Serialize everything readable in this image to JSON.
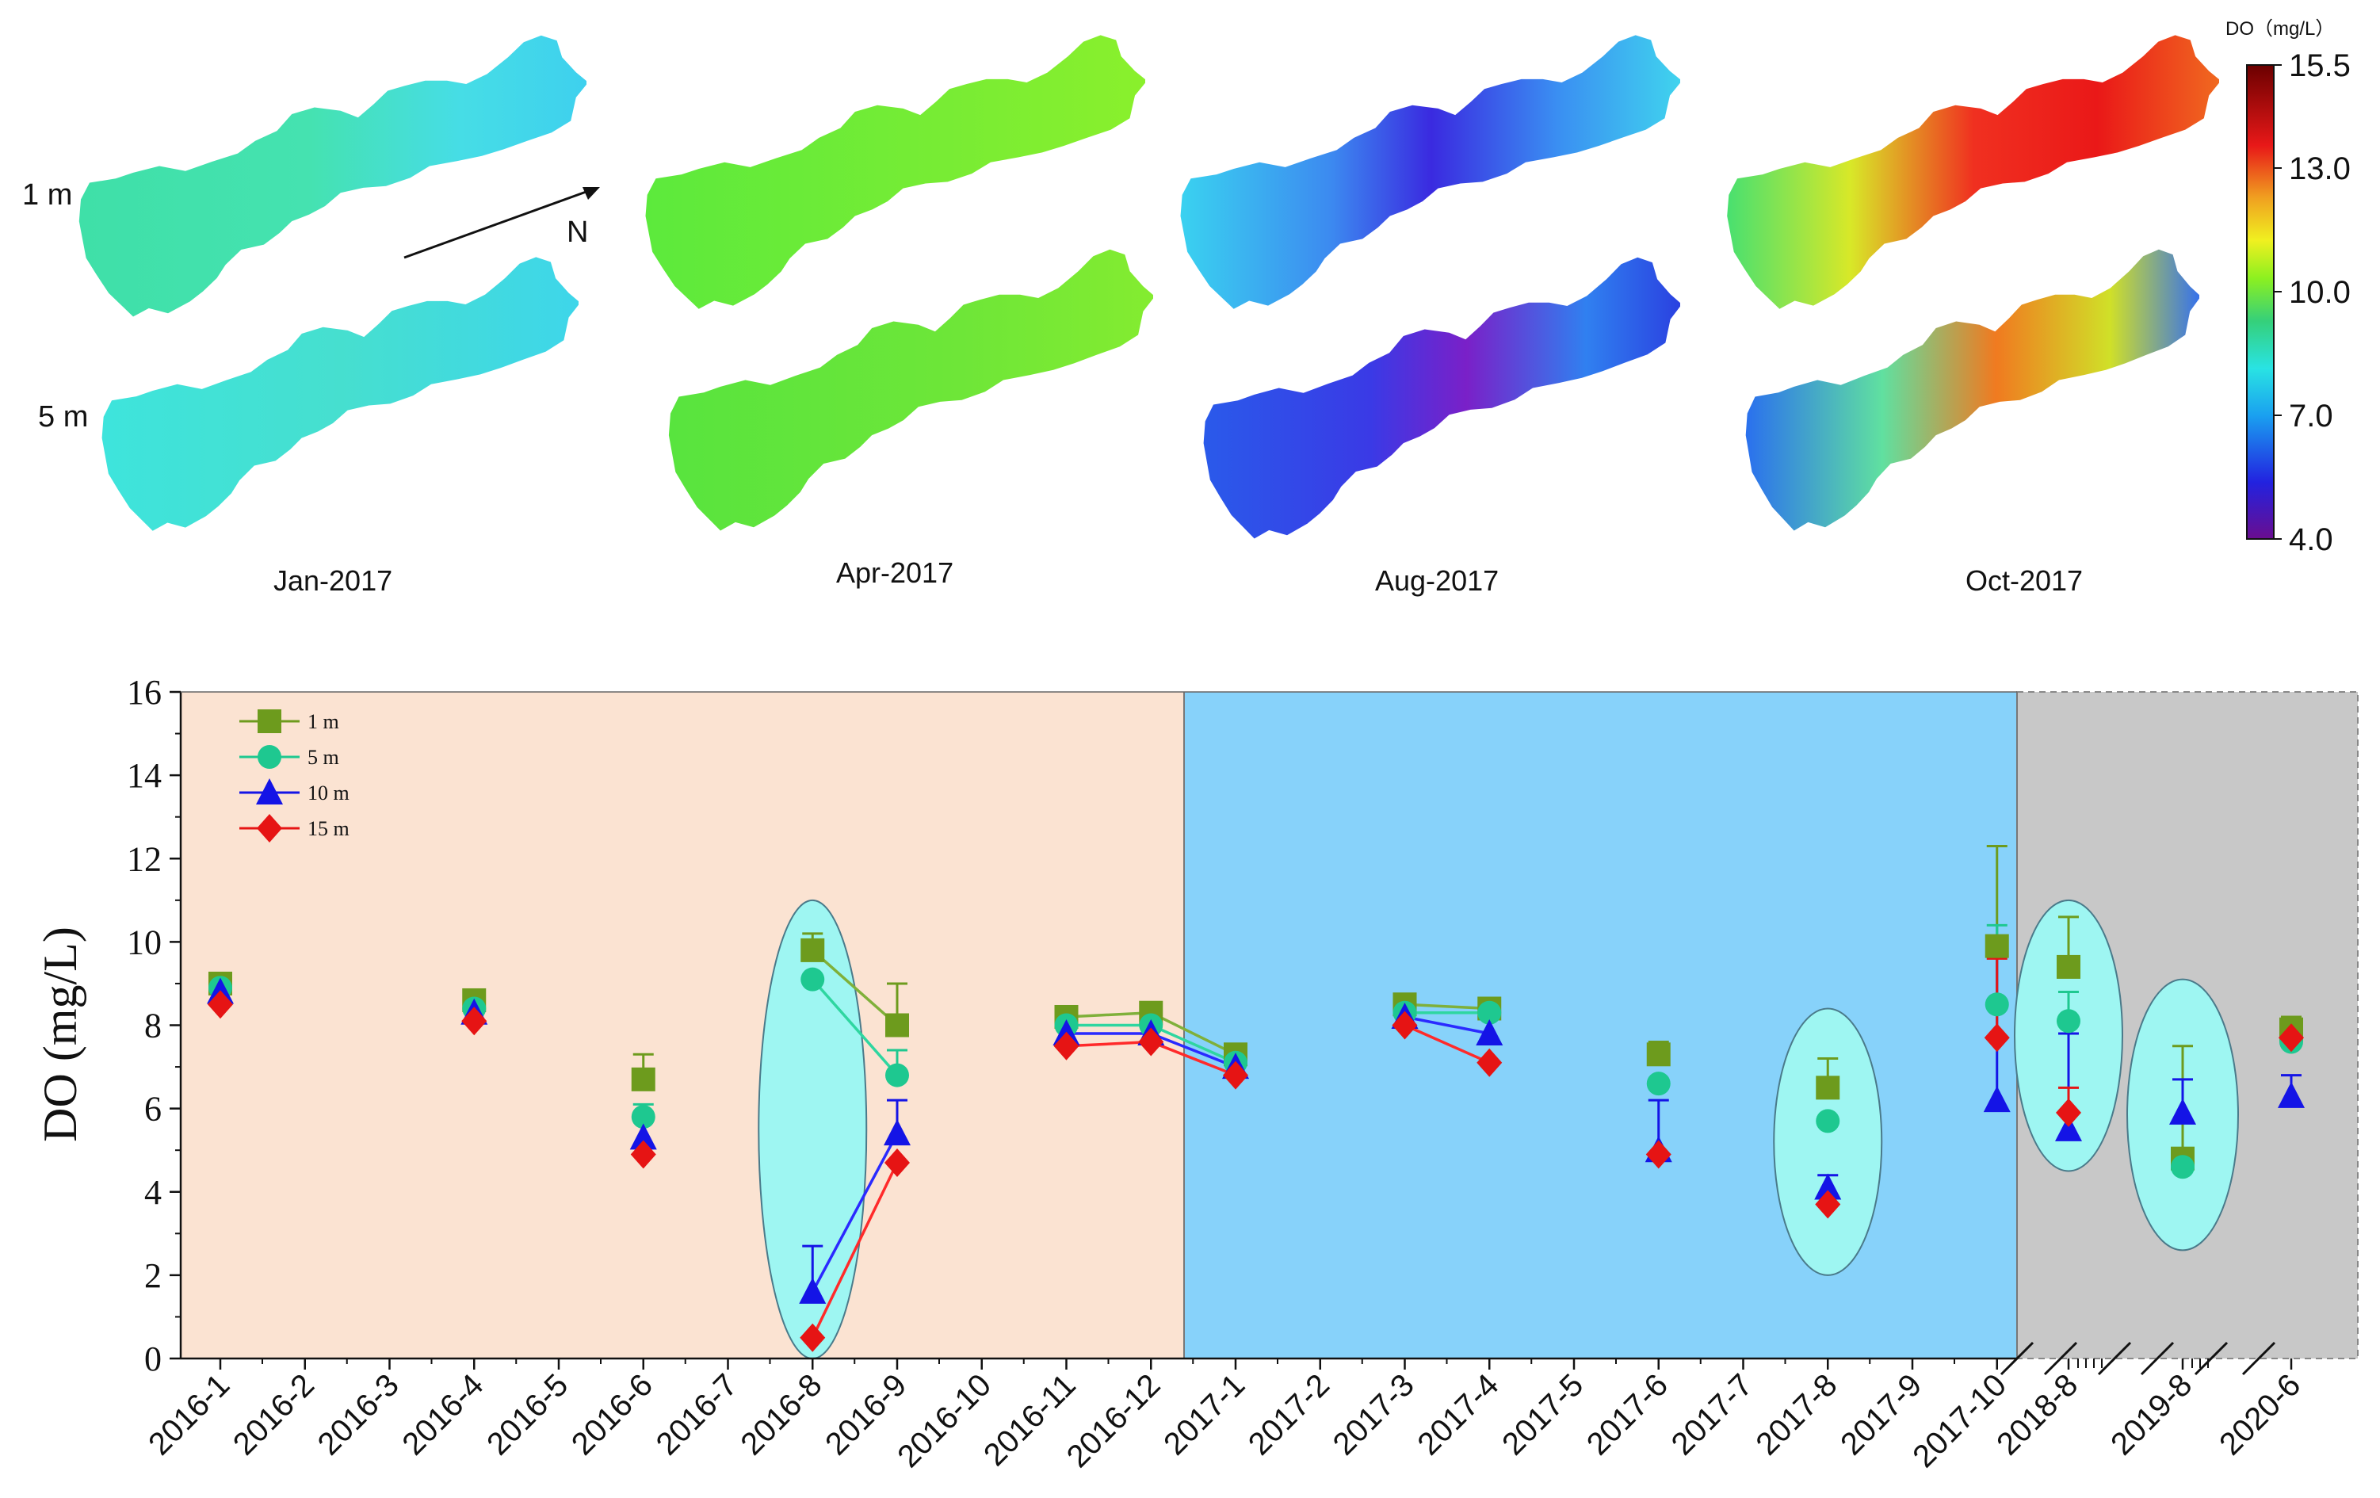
{
  "maps": {
    "depths": [
      "1 m",
      "5 m"
    ],
    "months": [
      "Jan-2017",
      "Apr-2017",
      "Aug-2017",
      "Oct-2017"
    ],
    "north_label": "N",
    "colorbar": {
      "title": "DO（mg/L）",
      "ticks": [
        "15.5",
        "13.0",
        "10.0",
        "7.0",
        "4.0"
      ],
      "min": 4.0,
      "max": 15.5,
      "colors": [
        "#6a0d8f",
        "#2020e0",
        "#1aa0f0",
        "#29e3e3",
        "#35d07a",
        "#8cf020",
        "#f0f020",
        "#f0a020",
        "#e81818",
        "#6b0000"
      ]
    }
  },
  "chart_data": {
    "type": "scatter",
    "title": "",
    "xlabel": "",
    "ylabel": "DO (mg/L)",
    "ylim": [
      0,
      16
    ],
    "yticks": [
      "0",
      "2",
      "4",
      "6",
      "8",
      "10",
      "12",
      "14",
      "16"
    ],
    "categories": [
      "2016-1",
      "2016-2",
      "2016-3",
      "2016-4",
      "2016-5",
      "2016-6",
      "2016-7",
      "2016-8",
      "2016-9",
      "2016-10",
      "2016-11",
      "2016-12",
      "2017-1",
      "2017-2",
      "2017-3",
      "2017-4",
      "2017-5",
      "2017-6",
      "2017-7",
      "2017-8",
      "2017-9",
      "2017-10",
      "2018-8",
      "2019-8",
      "2020-6"
    ],
    "periods": [
      {
        "from": "2016-1",
        "to": "2016-12",
        "color": "#fbe3d2"
      },
      {
        "from": "2017-1",
        "to": "2017-10",
        "color": "#87d2fa"
      },
      {
        "from": "2018-8",
        "to": "2020-6",
        "color": "#c8c8c8"
      }
    ],
    "highlighted_months": [
      "2016-8",
      "2017-8",
      "2018-8",
      "2019-8"
    ],
    "connected_segments": [
      [
        "2016-8",
        "2016-9"
      ],
      [
        "2016-11",
        "2016-12"
      ],
      [
        "2016-12",
        "2017-1"
      ],
      [
        "2017-3",
        "2017-4"
      ]
    ],
    "series": [
      {
        "name": "1 m",
        "color": "#6d9b1d",
        "marker": "square",
        "points": [
          {
            "x": "2016-1",
            "y": 9.0,
            "err": 0.2
          },
          {
            "x": "2016-4",
            "y": 8.6,
            "err": 0.2
          },
          {
            "x": "2016-6",
            "y": 6.7,
            "err": 0.6
          },
          {
            "x": "2016-8",
            "y": 9.8,
            "err": 0.4
          },
          {
            "x": "2016-9",
            "y": 8.0,
            "err": 1.0
          },
          {
            "x": "2016-11",
            "y": 8.2,
            "err": 0.1
          },
          {
            "x": "2016-12",
            "y": 8.3,
            "err": 0.1
          },
          {
            "x": "2017-1",
            "y": 7.3,
            "err": 0.1
          },
          {
            "x": "2017-3",
            "y": 8.5,
            "err": 0.1
          },
          {
            "x": "2017-4",
            "y": 8.4,
            "err": 0.1
          },
          {
            "x": "2017-6",
            "y": 7.3,
            "err": 0.3
          },
          {
            "x": "2017-8",
            "y": 6.5,
            "err": 0.7
          },
          {
            "x": "2017-10",
            "y": 9.9,
            "err": 2.4
          },
          {
            "x": "2018-8",
            "y": 9.4,
            "err": 1.2
          },
          {
            "x": "2019-8",
            "y": 4.8,
            "err": 2.7
          },
          {
            "x": "2020-6",
            "y": 7.9,
            "err": 0.3
          }
        ]
      },
      {
        "name": "5 m",
        "color": "#1ec890",
        "marker": "circle",
        "points": [
          {
            "x": "2016-1",
            "y": 8.9,
            "err": 0
          },
          {
            "x": "2016-4",
            "y": 8.4,
            "err": 0
          },
          {
            "x": "2016-6",
            "y": 5.8,
            "err": 0.3
          },
          {
            "x": "2016-8",
            "y": 9.1,
            "err": 0
          },
          {
            "x": "2016-9",
            "y": 6.8,
            "err": 0.6
          },
          {
            "x": "2016-11",
            "y": 8.0,
            "err": 0
          },
          {
            "x": "2016-12",
            "y": 8.0,
            "err": 0
          },
          {
            "x": "2017-1",
            "y": 7.1,
            "err": 0
          },
          {
            "x": "2017-3",
            "y": 8.3,
            "err": 0
          },
          {
            "x": "2017-4",
            "y": 8.3,
            "err": 0
          },
          {
            "x": "2017-6",
            "y": 6.6,
            "err": 0
          },
          {
            "x": "2017-8",
            "y": 5.7,
            "err": 0
          },
          {
            "x": "2017-10",
            "y": 8.5,
            "err": 1.9
          },
          {
            "x": "2018-8",
            "y": 8.1,
            "err": 0.7
          },
          {
            "x": "2019-8",
            "y": 4.6,
            "err": 0
          },
          {
            "x": "2020-6",
            "y": 7.6,
            "err": 0
          }
        ]
      },
      {
        "name": "10 m",
        "color": "#1414e6",
        "marker": "triangle",
        "points": [
          {
            "x": "2016-1",
            "y": 8.8,
            "err": 0
          },
          {
            "x": "2016-4",
            "y": 8.3,
            "err": 0
          },
          {
            "x": "2016-6",
            "y": 5.3,
            "err": 0
          },
          {
            "x": "2016-8",
            "y": 1.6,
            "err": 1.1
          },
          {
            "x": "2016-9",
            "y": 5.4,
            "err": 0.8
          },
          {
            "x": "2016-11",
            "y": 7.8,
            "err": 0
          },
          {
            "x": "2016-12",
            "y": 7.8,
            "err": 0
          },
          {
            "x": "2017-1",
            "y": 7.0,
            "err": 0
          },
          {
            "x": "2017-3",
            "y": 8.2,
            "err": 0
          },
          {
            "x": "2017-4",
            "y": 7.8,
            "err": 0
          },
          {
            "x": "2017-6",
            "y": 5.0,
            "err": 1.2
          },
          {
            "x": "2017-8",
            "y": 4.1,
            "err": 0.3
          },
          {
            "x": "2017-10",
            "y": 6.2,
            "err": 3.6
          },
          {
            "x": "2018-8",
            "y": 5.5,
            "err": 2.3
          },
          {
            "x": "2019-8",
            "y": 5.9,
            "err": 0.8
          },
          {
            "x": "2020-6",
            "y": 6.3,
            "err": 0.5
          }
        ]
      },
      {
        "name": "15 m",
        "color": "#e61414",
        "marker": "diamond",
        "points": [
          {
            "x": "2016-1",
            "y": 8.5,
            "err": 0
          },
          {
            "x": "2016-4",
            "y": 8.1,
            "err": 0
          },
          {
            "x": "2016-6",
            "y": 4.9,
            "err": 0
          },
          {
            "x": "2016-8",
            "y": 0.5,
            "err": 0
          },
          {
            "x": "2016-9",
            "y": 4.7,
            "err": 0
          },
          {
            "x": "2016-11",
            "y": 7.5,
            "err": 0
          },
          {
            "x": "2016-12",
            "y": 7.6,
            "err": 0
          },
          {
            "x": "2017-1",
            "y": 6.8,
            "err": 0
          },
          {
            "x": "2017-3",
            "y": 8.0,
            "err": 0
          },
          {
            "x": "2017-4",
            "y": 7.1,
            "err": 0
          },
          {
            "x": "2017-6",
            "y": 4.9,
            "err": 0
          },
          {
            "x": "2017-8",
            "y": 3.7,
            "err": 0
          },
          {
            "x": "2017-10",
            "y": 7.7,
            "err": 1.9
          },
          {
            "x": "2018-8",
            "y": 5.9,
            "err": 0.6
          },
          {
            "x": "2020-6",
            "y": 7.7,
            "err": 0
          }
        ]
      }
    ]
  }
}
